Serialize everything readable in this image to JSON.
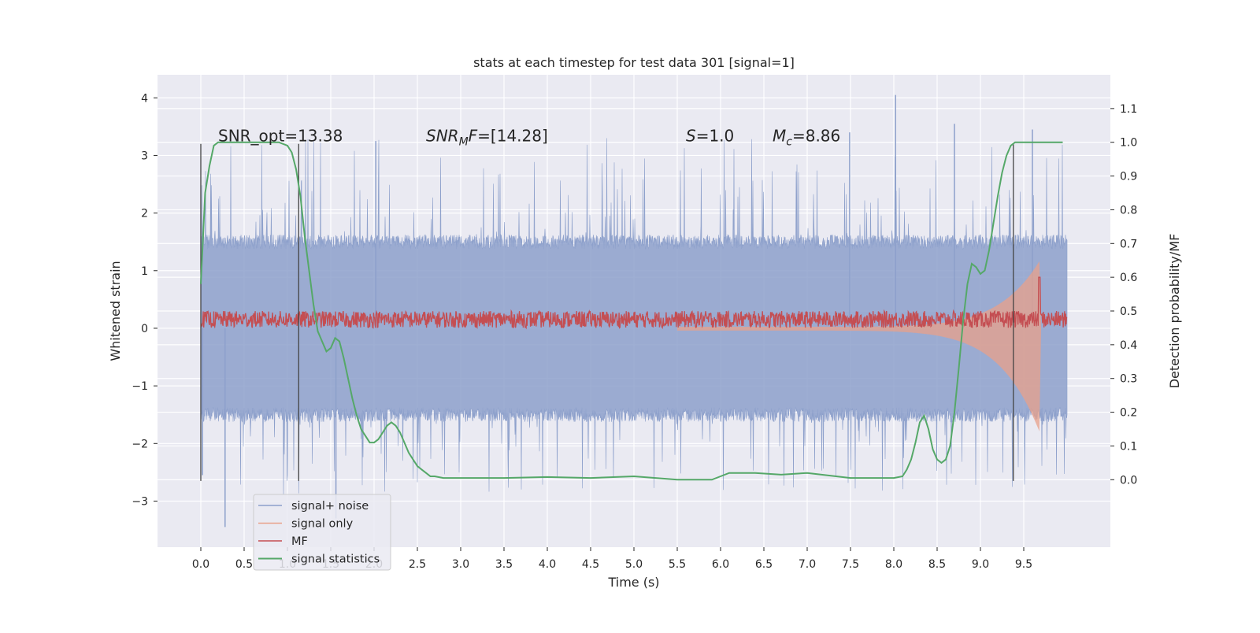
{
  "chart_data": {
    "type": "line",
    "title": "stats at each timestep for test data 301 [signal=1]",
    "xlabel": "Time (s)",
    "ylabel": "Whitened strain",
    "ylabel_right": "Detection probability/MF",
    "xlim": [
      -0.5,
      10.5
    ],
    "ylim": [
      -3.8,
      4.4
    ],
    "ylim_right": [
      -0.2,
      1.2
    ],
    "xticks": [
      0.0,
      0.5,
      1.0,
      1.5,
      2.0,
      2.5,
      3.0,
      3.5,
      4.0,
      4.5,
      5.0,
      5.5,
      6.0,
      6.5,
      7.0,
      7.5,
      8.0,
      8.5,
      9.0,
      9.5
    ],
    "xtick_labels": [
      "0.0",
      "0.5",
      "1.0",
      "1.5",
      "2.0",
      "2.5",
      "3.0",
      "3.5",
      "4.0",
      "4.5",
      "5.0",
      "5.5",
      "6.0",
      "6.5",
      "7.0",
      "7.5",
      "8.0",
      "8.5",
      "9.0",
      "9.5"
    ],
    "yticks": [
      -3,
      -2,
      -1,
      0,
      1,
      2,
      3,
      4
    ],
    "ytick_labels": [
      "−3",
      "−2",
      "−1",
      "0",
      "1",
      "2",
      "3",
      "4"
    ],
    "yticks_right": [
      0.0,
      0.1,
      0.2,
      0.3,
      0.4,
      0.5,
      0.6,
      0.7,
      0.8,
      0.9,
      1.0,
      1.1
    ],
    "ytick_labels_right": [
      "0.0",
      "0.1",
      "0.2",
      "0.3",
      "0.4",
      "0.5",
      "0.6",
      "0.7",
      "0.8",
      "0.9",
      "1.0",
      "1.1"
    ],
    "grid": true,
    "legend_position": "lower-left",
    "annotations": [
      {
        "text": "SNR_opt=13.38",
        "x": 0.2,
        "y": 3.3
      },
      {
        "text": "=[14.28]",
        "prefix": "SNR",
        "prefix_sub": "M",
        "prefix_tail": "F",
        "x": 2.6,
        "y": 3.3
      },
      {
        "text": "=1.0",
        "prefix": "S",
        "prefix_sub": "",
        "prefix_tail": "",
        "x": 5.6,
        "y": 3.3
      },
      {
        "text": "=8.86",
        "prefix": "M",
        "prefix_sub": "c",
        "prefix_tail": "",
        "x": 6.6,
        "y": 3.3
      }
    ],
    "vertical_lines": [
      0.0,
      1.13,
      9.38
    ],
    "vertical_line_range": [
      -2.65,
      3.2
    ],
    "series": [
      {
        "name": "signal+ noise",
        "color": "#8da0cb",
        "kind": "noise",
        "x_range": [
          0.0,
          10.0
        ],
        "typical_min": -1.5,
        "typical_max": 1.5,
        "peak_max": 4.05,
        "peak_min": -3.45
      },
      {
        "name": "signal only",
        "color": "#e8a08a",
        "kind": "chirp",
        "x_range": [
          5.5,
          9.7
        ],
        "peak_time": 9.68,
        "peak_amplitude": 1.75
      },
      {
        "name": "MF",
        "color": "#c44e52",
        "kind": "mf",
        "axis": "right",
        "x_range": [
          0.0,
          10.0
        ],
        "baseline": 0.47,
        "band": [
          0.45,
          0.5
        ],
        "peak_time": 9.68,
        "peak_value": 0.6
      },
      {
        "name": "signal statistics",
        "color": "#55a868",
        "kind": "line",
        "axis": "right",
        "x": [
          0.0,
          0.05,
          0.1,
          0.15,
          0.2,
          0.3,
          0.5,
          0.7,
          0.9,
          1.0,
          1.05,
          1.1,
          1.15,
          1.2,
          1.25,
          1.3,
          1.35,
          1.4,
          1.45,
          1.5,
          1.55,
          1.6,
          1.65,
          1.7,
          1.75,
          1.8,
          1.85,
          1.9,
          1.95,
          2.0,
          2.05,
          2.1,
          2.15,
          2.2,
          2.25,
          2.3,
          2.35,
          2.4,
          2.45,
          2.5,
          2.55,
          2.6,
          2.65,
          2.7,
          2.8,
          3.0,
          3.5,
          4.0,
          4.5,
          5.0,
          5.5,
          5.9,
          6.0,
          6.1,
          6.2,
          6.4,
          6.7,
          7.0,
          7.5,
          8.0,
          8.1,
          8.15,
          8.2,
          8.25,
          8.3,
          8.35,
          8.4,
          8.45,
          8.5,
          8.55,
          8.6,
          8.65,
          8.7,
          8.75,
          8.8,
          8.85,
          8.9,
          8.95,
          9.0,
          9.05,
          9.1,
          9.15,
          9.2,
          9.25,
          9.3,
          9.35,
          9.4,
          9.45,
          9.5,
          9.55,
          9.6,
          9.7,
          9.8,
          9.9,
          9.95
        ],
        "y": [
          0.58,
          0.85,
          0.93,
          0.99,
          1.0,
          1.0,
          1.0,
          1.0,
          1.0,
          0.99,
          0.97,
          0.92,
          0.84,
          0.72,
          0.62,
          0.52,
          0.44,
          0.41,
          0.38,
          0.39,
          0.42,
          0.41,
          0.36,
          0.3,
          0.24,
          0.19,
          0.15,
          0.13,
          0.11,
          0.11,
          0.12,
          0.14,
          0.16,
          0.17,
          0.16,
          0.14,
          0.11,
          0.08,
          0.06,
          0.04,
          0.03,
          0.02,
          0.01,
          0.01,
          0.005,
          0.005,
          0.005,
          0.008,
          0.005,
          0.01,
          0.0,
          0.0,
          0.01,
          0.02,
          0.02,
          0.02,
          0.015,
          0.02,
          0.005,
          0.005,
          0.01,
          0.03,
          0.06,
          0.11,
          0.17,
          0.19,
          0.15,
          0.09,
          0.06,
          0.05,
          0.06,
          0.1,
          0.2,
          0.33,
          0.47,
          0.58,
          0.64,
          0.63,
          0.61,
          0.62,
          0.68,
          0.76,
          0.84,
          0.91,
          0.96,
          0.99,
          1.0,
          1.0,
          1.0,
          1.0,
          1.0,
          1.0,
          1.0,
          1.0,
          1.0
        ]
      }
    ]
  }
}
